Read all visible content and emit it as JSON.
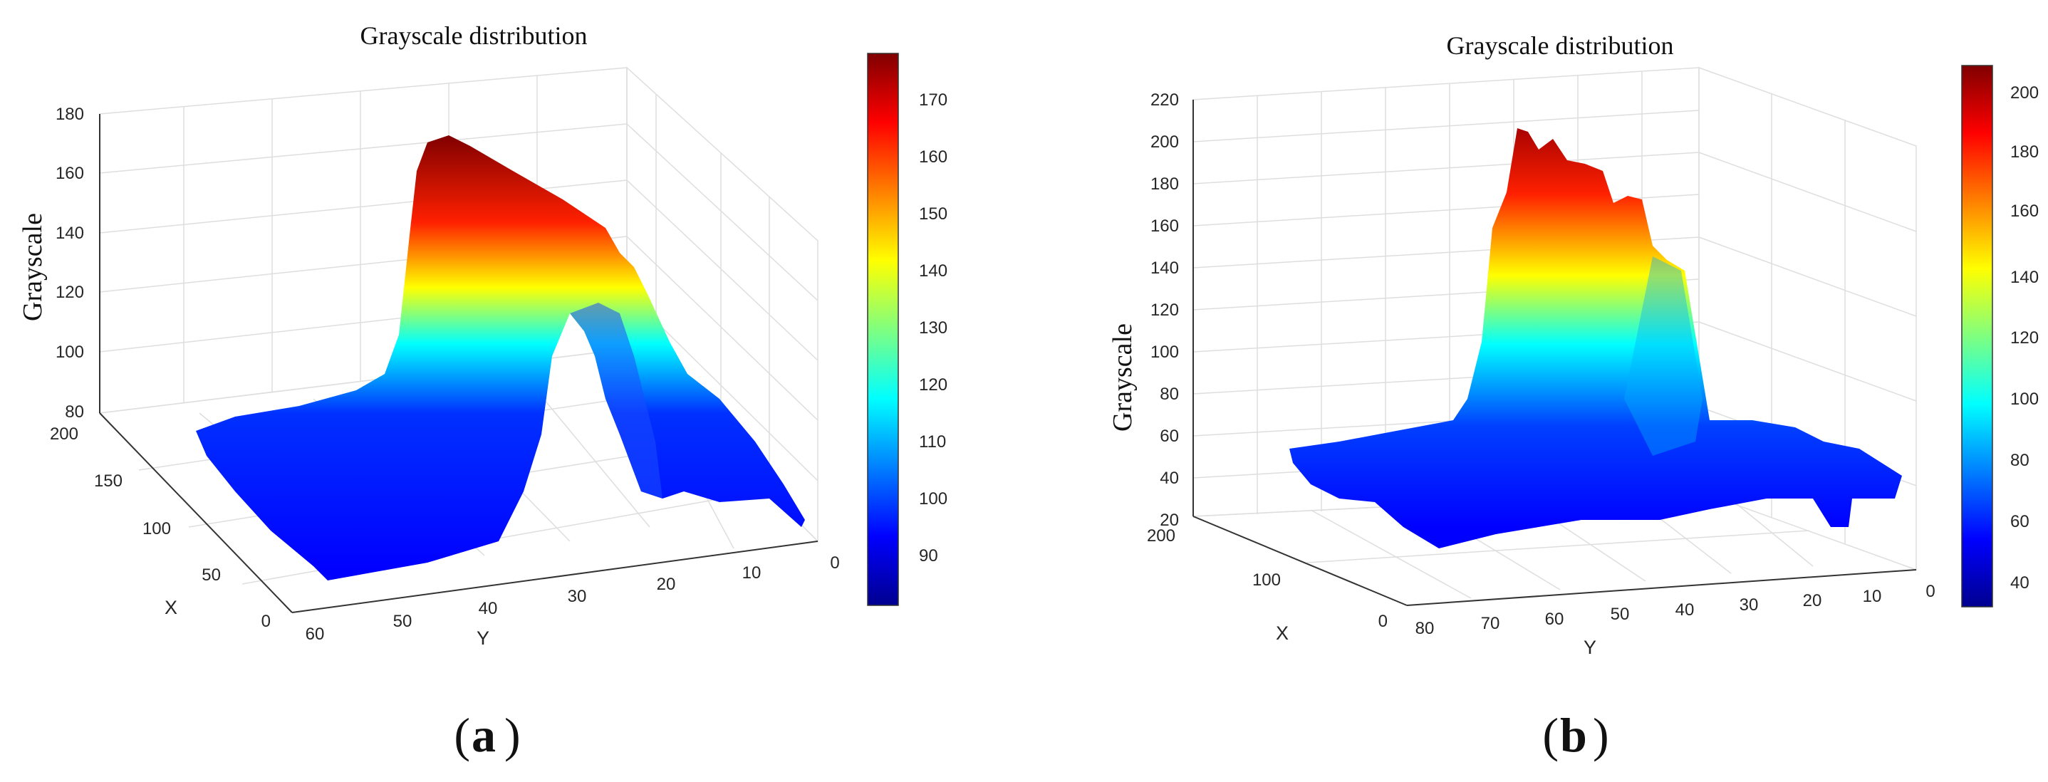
{
  "chart_data": [
    {
      "type": "surface",
      "title": "Grayscale distribution",
      "zlabel": "Grayscale",
      "xlabel": "X",
      "ylabel": "Y",
      "panel_label": "a",
      "x_ticks": [
        "200",
        "150",
        "100",
        "50",
        "0"
      ],
      "y_ticks": [
        "60",
        "50",
        "40",
        "30",
        "20",
        "10",
        "0"
      ],
      "z_ticks": [
        "180",
        "160",
        "140",
        "120",
        "100",
        "80"
      ],
      "zlim": [
        80,
        180
      ],
      "colorbar": {
        "ticks": [
          "170",
          "160",
          "150",
          "140",
          "130",
          "120",
          "110",
          "100",
          "90"
        ],
        "range": [
          82,
          178
        ]
      },
      "profile_y": [
        60,
        50,
        40,
        33,
        31,
        29,
        27,
        24,
        21,
        16,
        10,
        5,
        0
      ],
      "profile_z": [
        88,
        90,
        92,
        102,
        135,
        165,
        172,
        168,
        150,
        118,
        104,
        96,
        92
      ]
    },
    {
      "type": "surface",
      "title": "Grayscale distribution",
      "zlabel": "Grayscale",
      "xlabel": "X",
      "ylabel": "Y",
      "panel_label": "b",
      "x_ticks": [
        "200",
        "100",
        "0"
      ],
      "y_ticks": [
        "80",
        "70",
        "60",
        "50",
        "40",
        "30",
        "20",
        "10",
        "0"
      ],
      "z_ticks": [
        "220",
        "200",
        "180",
        "160",
        "140",
        "120",
        "100",
        "80",
        "60",
        "40",
        "20"
      ],
      "zlim": [
        20,
        220
      ],
      "colorbar": {
        "ticks": [
          "200",
          "180",
          "160",
          "140",
          "120",
          "100",
          "80",
          "60",
          "40"
        ],
        "range": [
          33,
          208
        ]
      },
      "profile_y": [
        80,
        70,
        60,
        55,
        50,
        46,
        43,
        40,
        37,
        30,
        20,
        10,
        0
      ],
      "profile_z": [
        50,
        52,
        55,
        90,
        190,
        205,
        170,
        150,
        60,
        52,
        50,
        45,
        48
      ]
    }
  ]
}
